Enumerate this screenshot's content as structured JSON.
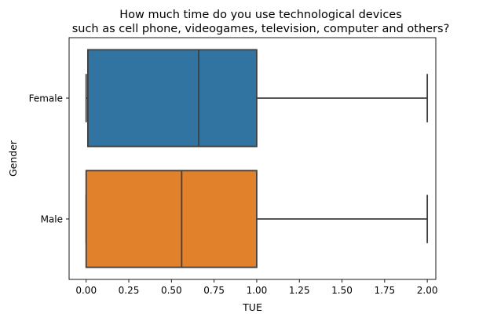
{
  "chart_data": {
    "type": "boxplot",
    "orientation": "horizontal",
    "title_lines": [
      "How much time do you use technological devices",
      "such as cell phone, videogames, television, computer and others?"
    ],
    "xlabel": "TUE",
    "ylabel": "Gender",
    "xlim": [
      -0.1,
      2.05
    ],
    "x_ticks": [
      "0.00",
      "0.25",
      "0.50",
      "0.75",
      "1.00",
      "1.25",
      "1.50",
      "1.75",
      "2.00"
    ],
    "x_tick_values": [
      0,
      0.25,
      0.5,
      0.75,
      1.0,
      1.25,
      1.5,
      1.75,
      2.0
    ],
    "categories": [
      "Female",
      "Male"
    ],
    "series": [
      {
        "category": "Female",
        "whisker_low": 0.0,
        "q1": 0.01,
        "median": 0.66,
        "q3": 1.0,
        "whisker_high": 2.0,
        "color": "#3274a1"
      },
      {
        "category": "Male",
        "whisker_low": 0.0,
        "q1": 0.0,
        "median": 0.56,
        "q3": 1.0,
        "whisker_high": 2.0,
        "color": "#e1812c"
      }
    ],
    "grid": false,
    "line_color": "#3f3f3f"
  }
}
